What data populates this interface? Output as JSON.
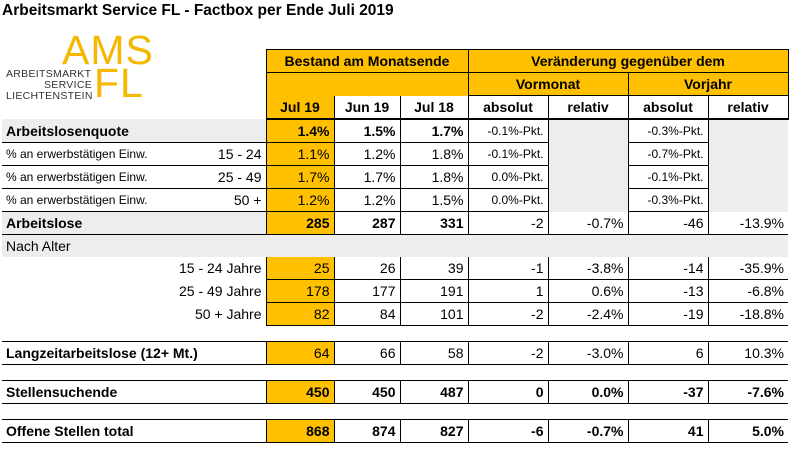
{
  "title": "Arbeitsmarkt Service FL - Factbox per Ende Juli 2019",
  "logo": {
    "abbr1": "AMS",
    "abbr2": "FL",
    "line1": "ARBEITSMARKT",
    "line2": "SERVICE",
    "line3": "LIECHTENSTEIN"
  },
  "header": {
    "bestand": "Bestand am Monatsende",
    "veraenderung": "Veränderung gegenüber dem",
    "vormonat": "Vormonat",
    "vorjahr": "Vorjahr",
    "jul19": "Jul 19",
    "jun19": "Jun 19",
    "jul18": "Jul 18",
    "absolut": "absolut",
    "relativ": "relativ"
  },
  "rows": {
    "quote": {
      "label": "Arbeitslosenquote",
      "jul19": "1.4%",
      "jun19": "1.5%",
      "jul18": "1.7%",
      "vm_abs": "-0.1%-Pkt.",
      "vj_abs": "-0.3%-Pkt."
    },
    "q1524": {
      "label": "% an erwerbstätigen Einw.",
      "age": "15 - 24",
      "jul19": "1.1%",
      "jun19": "1.2%",
      "jul18": "1.8%",
      "vm_abs": "-0.1%-Pkt.",
      "vj_abs": "-0.7%-Pkt."
    },
    "q2549": {
      "label": "% an erwerbstätigen Einw.",
      "age": "25 - 49",
      "jul19": "1.7%",
      "jun19": "1.7%",
      "jul18": "1.8%",
      "vm_abs": "0.0%-Pkt.",
      "vj_abs": "-0.1%-Pkt."
    },
    "q50": {
      "label": "% an erwerbstätigen Einw.",
      "age": "50 +",
      "jul19": "1.2%",
      "jun19": "1.2%",
      "jul18": "1.5%",
      "vm_abs": "0.0%-Pkt.",
      "vj_abs": "-0.3%-Pkt."
    },
    "arbeitslose": {
      "label": "Arbeitslose",
      "jul19": "285",
      "jun19": "287",
      "jul18": "331",
      "vm_abs": "-2",
      "vm_rel": "-0.7%",
      "vj_abs": "-46",
      "vj_rel": "-13.9%"
    },
    "nachalter": {
      "label": "Nach Alter"
    },
    "a1524": {
      "label": "15 - 24 Jahre",
      "jul19": "25",
      "jun19": "26",
      "jul18": "39",
      "vm_abs": "-1",
      "vm_rel": "-3.8%",
      "vj_abs": "-14",
      "vj_rel": "-35.9%"
    },
    "a2549": {
      "label": "25 - 49 Jahre",
      "jul19": "178",
      "jun19": "177",
      "jul18": "191",
      "vm_abs": "1",
      "vm_rel": "0.6%",
      "vj_abs": "-13",
      "vj_rel": "-6.8%"
    },
    "a50": {
      "label": "50 + Jahre",
      "jul19": "82",
      "jun19": "84",
      "jul18": "101",
      "vm_abs": "-2",
      "vm_rel": "-2.4%",
      "vj_abs": "-19",
      "vj_rel": "-18.8%"
    },
    "langzeit": {
      "label": "Langzeitarbeitslose (12+ Mt.)",
      "jul19": "64",
      "jun19": "66",
      "jul18": "58",
      "vm_abs": "-2",
      "vm_rel": "-3.0%",
      "vj_abs": "6",
      "vj_rel": "10.3%"
    },
    "stellen": {
      "label": "Stellensuchende",
      "jul19": "450",
      "jun19": "450",
      "jul18": "487",
      "vm_abs": "0",
      "vm_rel": "0.0%",
      "vj_abs": "-37",
      "vj_rel": "-7.6%"
    },
    "offene": {
      "label": "Offene Stellen total",
      "jul19": "868",
      "jun19": "874",
      "jul18": "827",
      "vm_abs": "-6",
      "vm_rel": "-0.7%",
      "vj_abs": "41",
      "vj_rel": "5.0%"
    }
  }
}
